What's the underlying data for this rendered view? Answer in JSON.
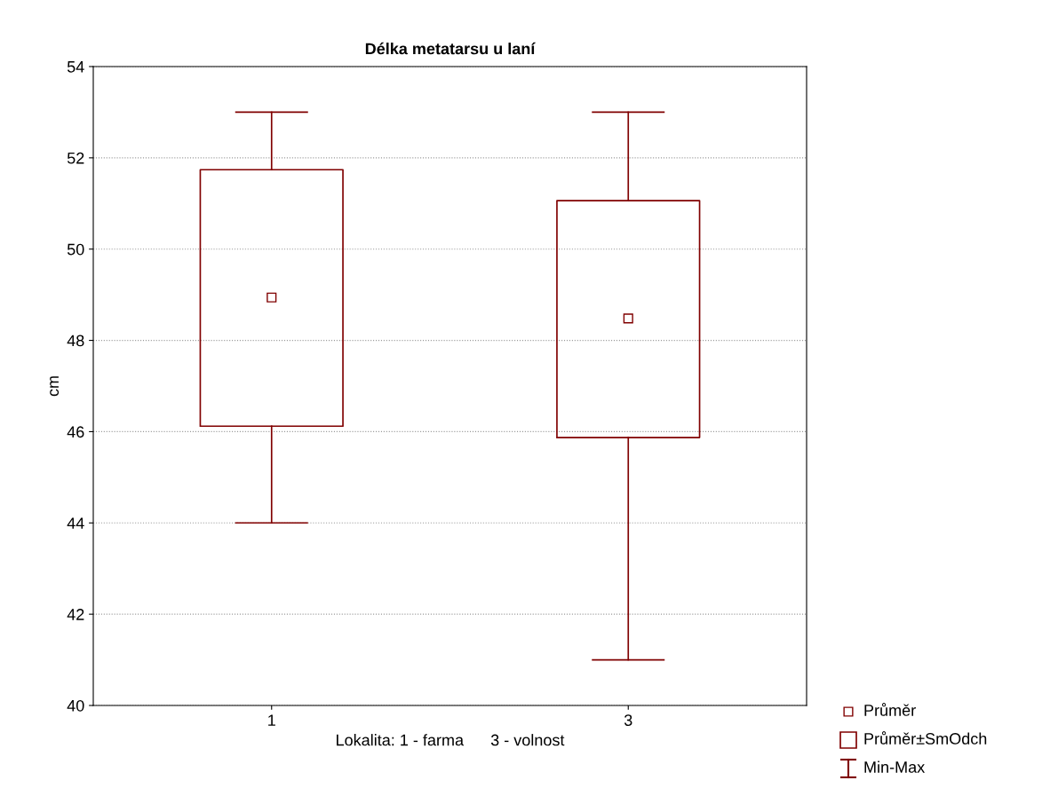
{
  "chart_data": {
    "type": "box",
    "title": "Délka metatarsu u laní",
    "xlabel": "Lokalita: 1 - farma      3 - volnost",
    "ylabel": "cm",
    "categories": [
      "1",
      "3"
    ],
    "series": [
      {
        "color": "#800000",
        "boxes": [
          {
            "low": 44,
            "q1": 46.12,
            "mean": 48.94,
            "q3": 51.74,
            "high": 53
          },
          {
            "low": 41,
            "q1": 45.87,
            "mean": 48.48,
            "q3": 51.06,
            "high": 53
          }
        ]
      }
    ],
    "annotations": [
      "Průměr",
      "Průměr±SmOdch",
      "Min-Max"
    ],
    "ylim": [
      40,
      54
    ],
    "yticks": [
      40,
      42,
      44,
      46,
      48,
      50,
      52,
      54
    ],
    "grid": "y",
    "marker": "square"
  }
}
